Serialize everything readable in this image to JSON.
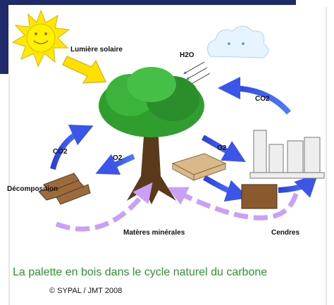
{
  "labels": {
    "sun": "Lumière solaire",
    "water": "H2O",
    "co2_top": "CO2",
    "co2_left": "CO2",
    "o2_left": "O2",
    "o2_right": "O2",
    "decomposition": "Décomposition",
    "minerals": "Matères minérales",
    "ashes": "Cendres"
  },
  "caption": "La palette en bois dans le cycle naturel du carbone",
  "credit": "© SYPAL / JMT 2008"
}
